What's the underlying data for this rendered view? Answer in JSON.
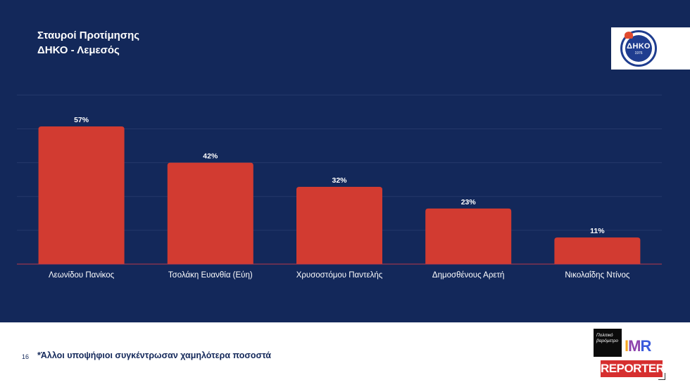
{
  "title": {
    "line1": "Σταυροί Προτίμησης",
    "line2": "ΔΗΚΟ - Λεμεσός"
  },
  "logo": {
    "text": "ΔΗΚΟ",
    "year": "1976",
    "icon": "dhko-party-logo-icon"
  },
  "chart_data": {
    "type": "bar",
    "categories": [
      "Λεωνίδου Πανίκος",
      "Τσολάκη Ευανθία (Εύη)",
      "Χρυσοστόμου Παντελής",
      "Δημοσθένους Αρετή",
      "Νικολαΐδης Ντίνος"
    ],
    "values": [
      57,
      42,
      32,
      23,
      11
    ],
    "labels": [
      "57%",
      "42%",
      "32%",
      "23%",
      "11%"
    ],
    "ylim": [
      0,
      70
    ],
    "grid": true,
    "colors": {
      "bar": "#d23b31",
      "background": "#13285a",
      "grid": "#25386a",
      "text": "#ffffff"
    }
  },
  "footer": {
    "page_number": "16",
    "note": "*Άλλοι υποψήφιοι συγκέντρωσαν χαμηλότερα ποσοστά"
  },
  "brands": {
    "box_text": "Πολιτικό βαρόμετρο",
    "imr": [
      "I",
      "M",
      "R"
    ],
    "reporter": "REPORTER"
  }
}
